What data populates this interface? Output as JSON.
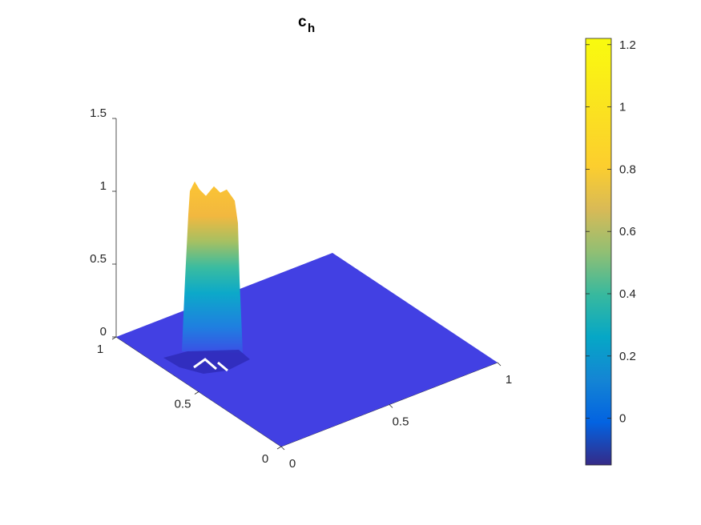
{
  "chart_data": {
    "type": "surface",
    "title": "c",
    "title_subscript": "h",
    "x_axis": {
      "range": [
        0,
        1
      ],
      "ticks": [
        0,
        0.5,
        1
      ],
      "tick_labels": [
        "0",
        "0.5",
        "1"
      ]
    },
    "y_axis": {
      "range": [
        0,
        1
      ],
      "ticks": [
        0,
        0.5,
        1
      ],
      "tick_labels": [
        "0",
        "0.5",
        "1"
      ]
    },
    "z_axis": {
      "range": [
        0,
        1.5
      ],
      "ticks": [
        0,
        0.5,
        1,
        1.5
      ],
      "tick_labels": [
        "0",
        "0.5",
        "1",
        "1.5"
      ]
    },
    "surface": {
      "baseline_value": 0,
      "peak": {
        "x": 0.25,
        "y": 0.75,
        "value": 1.1,
        "half_width": 0.1
      },
      "undershoot_min": -0.15
    },
    "colorbar": {
      "colormap": "parula",
      "range": [
        -0.15,
        1.22
      ],
      "ticks": [
        0,
        0.2,
        0.4,
        0.6,
        0.8,
        1,
        1.2
      ],
      "tick_labels": [
        "0",
        "0.2",
        "0.4",
        "0.6",
        "0.8",
        "1",
        "1.2"
      ],
      "position": "right"
    },
    "grid": false,
    "box": false
  }
}
